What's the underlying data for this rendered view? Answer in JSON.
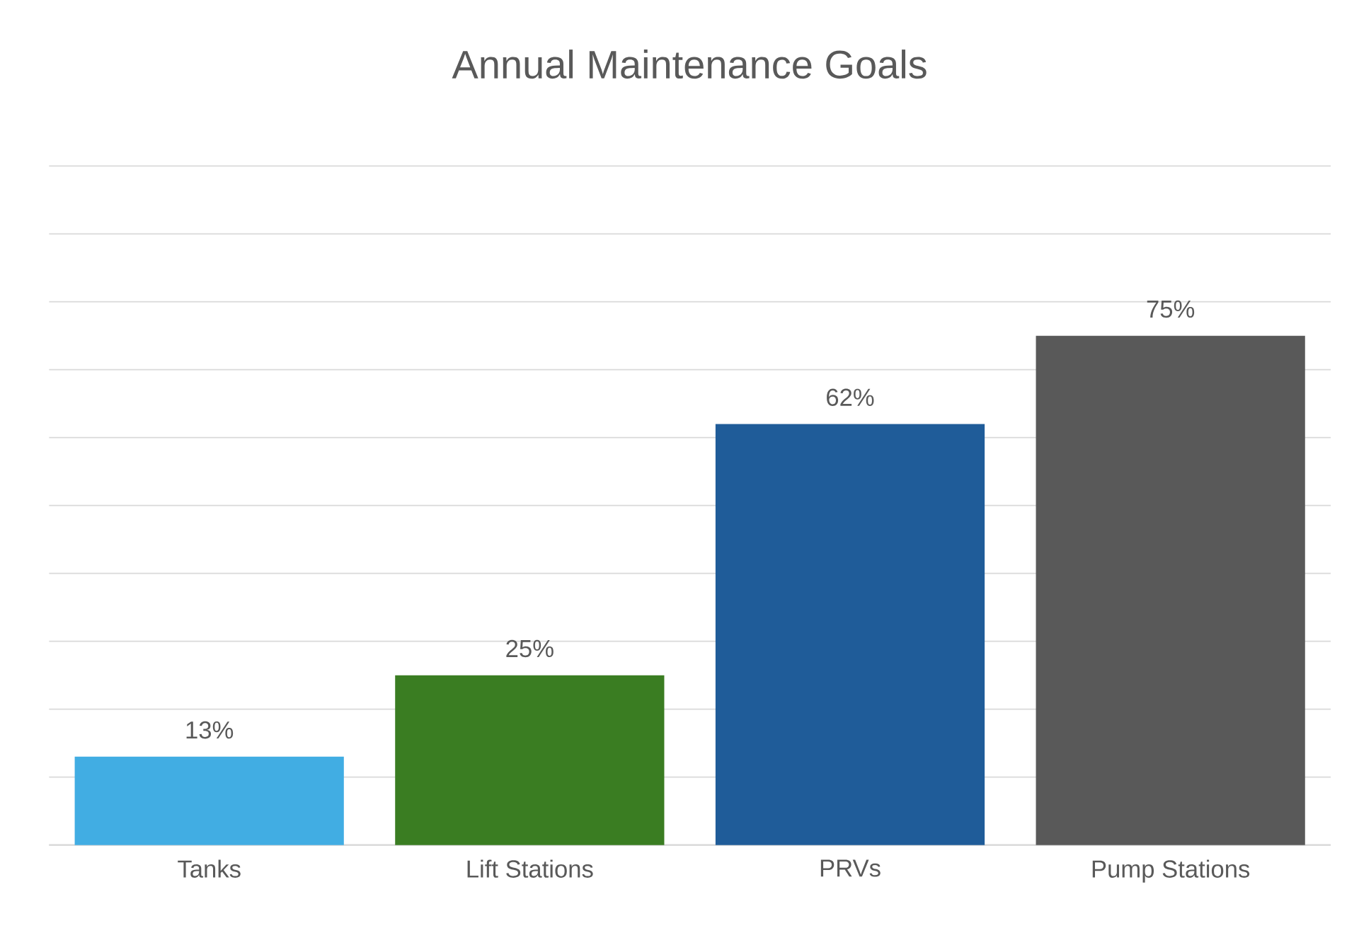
{
  "chart_data": {
    "type": "bar",
    "title": "Annual Maintenance Goals",
    "categories": [
      "Tanks",
      "Lift Stations",
      "PRVs",
      "Pump Stations"
    ],
    "values": [
      13,
      25,
      62,
      75
    ],
    "value_labels": [
      "13%",
      "25%",
      "62%",
      "75%"
    ],
    "colors": [
      "#41ade3",
      "#3a7d22",
      "#1f5c99",
      "#595959"
    ],
    "ylim": [
      0,
      100
    ],
    "yticks": [
      {
        "value": 0,
        "label": null
      },
      {
        "value": 10,
        "label": null
      },
      {
        "value": 20,
        "label": null
      },
      {
        "value": 30,
        "label": null
      },
      {
        "value": 40,
        "label": null
      },
      {
        "value": 50,
        "label": null
      },
      {
        "value": 60,
        "label": null
      },
      {
        "value": 70,
        "label": null
      },
      {
        "value": 80,
        "label": null
      },
      {
        "value": 90,
        "label": null
      },
      {
        "value": 100,
        "label": null
      }
    ],
    "grid": "y",
    "tick_labels": "x"
  }
}
